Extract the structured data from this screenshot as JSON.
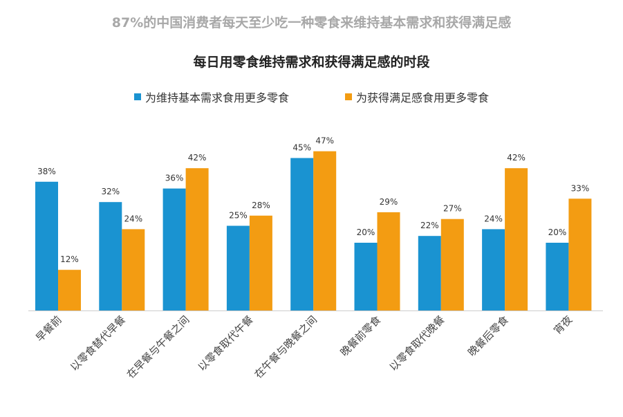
{
  "headline": "87%的中国消费者每天至少吃一种零食来维持基本需求和获得满足感",
  "chart_data": {
    "type": "bar",
    "title": "每日用零食维持需求和获得满足感的时段",
    "categories": [
      "早餐前",
      "以零食替代早餐",
      "在早餐与午餐之间",
      "以零食取代午餐",
      "在午餐与晚餐之间",
      "晚餐前零食",
      "以零食取代晚餐",
      "晚餐后零食",
      "宵夜"
    ],
    "series": [
      {
        "name": "为维持基本需求食用更多零食",
        "color": "#1a93d1",
        "values": [
          38,
          32,
          36,
          25,
          45,
          20,
          22,
          24,
          20
        ]
      },
      {
        "name": "为获得满足感食用更多零食",
        "color": "#f39c12",
        "values": [
          12,
          24,
          42,
          28,
          47,
          29,
          27,
          42,
          33
        ]
      }
    ],
    "value_suffix": "%",
    "ylim": [
      0,
      50
    ],
    "grid": false,
    "legend_position": "top"
  }
}
